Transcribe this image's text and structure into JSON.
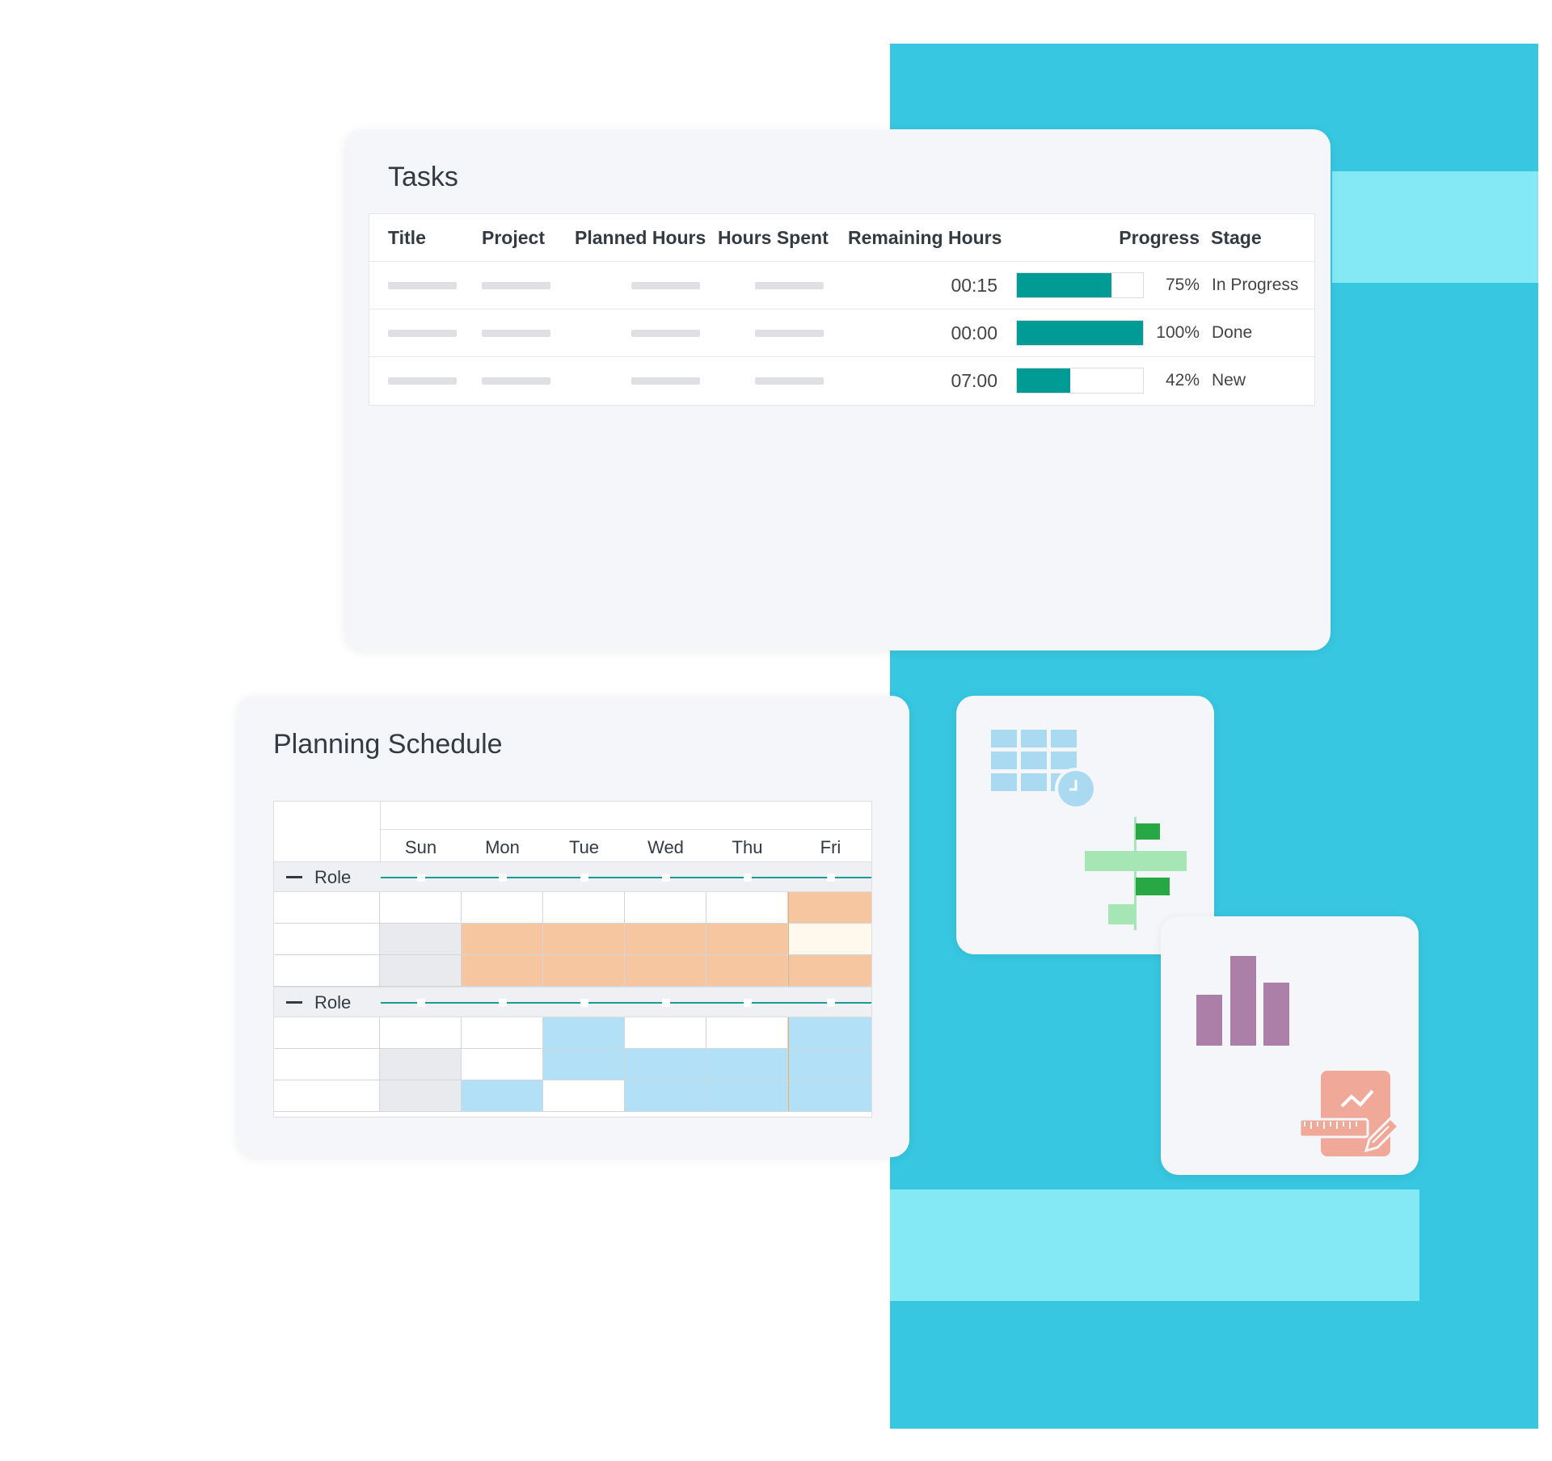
{
  "colors": {
    "background_teal": "#37c7e0",
    "background_stripe": "#85e8f5",
    "card_bg": "#f5f6f9",
    "progress_fill": "#009b95",
    "schedule_orange": "#f6c6a0",
    "schedule_orange_light": "#fff8ec",
    "schedule_blue": "#b2e0f6",
    "schedule_gray": "#e8eaed"
  },
  "tasks": {
    "title": "Tasks",
    "columns": [
      "Title",
      "Project",
      "Planned Hours",
      "Hours Spent",
      "Remaining Hours",
      "Progress",
      "Stage"
    ],
    "rows": [
      {
        "remaining": "00:15",
        "progress": 0.75,
        "progress_label": "75%",
        "stage": "In Progress"
      },
      {
        "remaining": "00:00",
        "progress": 1.0,
        "progress_label": "100%",
        "stage": "Done"
      },
      {
        "remaining": "07:00",
        "progress": 0.42,
        "progress_label": "42%",
        "stage": "New"
      }
    ]
  },
  "planning": {
    "title": "Planning Schedule",
    "days": [
      "Sun",
      "Mon",
      "Tue",
      "Wed",
      "Thu",
      "Fri"
    ],
    "roles": [
      {
        "label": "Role",
        "cells": [
          [
            "white",
            "white",
            "white",
            "white",
            "white",
            "orange"
          ],
          [
            "gray",
            "orange",
            "orange",
            "orange",
            "orange",
            "light"
          ],
          [
            "gray",
            "orange",
            "orange",
            "orange",
            "orange",
            "orange"
          ]
        ]
      },
      {
        "label": "Role",
        "cells": [
          [
            "white",
            "white",
            "blue",
            "white",
            "white",
            "blue"
          ],
          [
            "gray",
            "white",
            "blue",
            "blue",
            "blue",
            "blue"
          ],
          [
            "gray",
            "blue",
            "white",
            "blue",
            "blue",
            "blue"
          ]
        ]
      }
    ]
  },
  "icons": [
    "calendar-clock-icon",
    "gantt-chart-icon",
    "bar-chart-icon",
    "report-design-icon"
  ]
}
